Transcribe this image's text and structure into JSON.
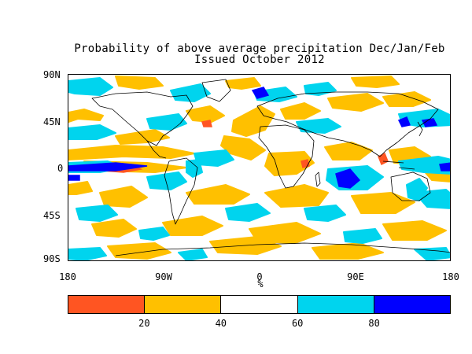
{
  "title_line1": "Probability of above average precipitation Dec/Jan/Feb",
  "title_line2": "Issued October 2012",
  "lat_labels": [
    "90N",
    "45N",
    "0",
    "45S",
    "90S"
  ],
  "lon_labels": [
    "180",
    "90W",
    "0",
    "90E",
    "180"
  ],
  "x_unit": "%",
  "colorbar": {
    "colors": [
      "#ff5522",
      "#ffc000",
      "#ffffff",
      "#00d4ee",
      "#0000ff"
    ],
    "ticks": [
      "20",
      "40",
      "60",
      "80"
    ]
  }
}
